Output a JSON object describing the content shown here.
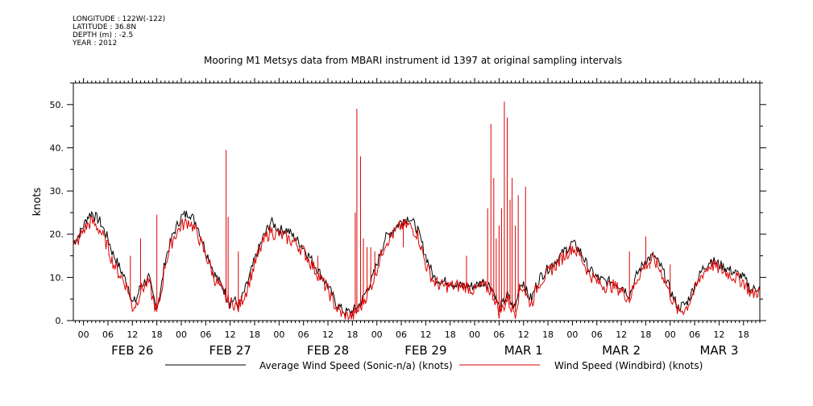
{
  "meta": {
    "longitude": "LONGITUDE : 122W(-122)",
    "latitude": "LATITUDE : 36.8N",
    "depth": "DEPTH (m) : -2.5",
    "year": "YEAR : 2012"
  },
  "chart_data": {
    "type": "line",
    "title": "Mooring M1 Metsys data from MBARI instrument id 1397 at original sampling intervals",
    "ylabel": "knots",
    "xlabel": "",
    "ylim": [
      0,
      55
    ],
    "xlim_hours": [
      -2.5,
      166
    ],
    "yticks": [
      0,
      10,
      20,
      30,
      40,
      50
    ],
    "ytick_labels": [
      "0.",
      "10.",
      "20.",
      "30.",
      "40.",
      "50."
    ],
    "xtick_labels": [
      "00",
      "06",
      "12",
      "18",
      "00",
      "06",
      "12",
      "18",
      "00",
      "06",
      "12",
      "18",
      "00",
      "06",
      "12",
      "18",
      "00",
      "06",
      "12",
      "18",
      "00",
      "06",
      "12",
      "18",
      "00",
      "06",
      "12",
      "18"
    ],
    "day_labels": [
      "FEB 26",
      "FEB 27",
      "FEB 28",
      "FEB 29",
      "MAR  1",
      "MAR  2",
      "MAR  3"
    ],
    "grid": false,
    "legend_position": "bottom",
    "series": [
      {
        "name": "Average Wind Speed (Sonic-n/a) (knots)",
        "color": "#000000",
        "x_hours": [
          -2.5,
          -1,
          0,
          1,
          2,
          4,
          6,
          7,
          8,
          10,
          11,
          12,
          13,
          14,
          15,
          16,
          17,
          18,
          19,
          20,
          22,
          24,
          26,
          28,
          30,
          31,
          32,
          34,
          35,
          36,
          37,
          38,
          40,
          42,
          44,
          46,
          47,
          48,
          50,
          52,
          54,
          56,
          58,
          60,
          62,
          64,
          66,
          68,
          69,
          70,
          71,
          72,
          73,
          74,
          76,
          78,
          80,
          82,
          84,
          86,
          88,
          90,
          92,
          94,
          96,
          98,
          100,
          101,
          102,
          103,
          104,
          105,
          106,
          107,
          108,
          109,
          110,
          111,
          112,
          114,
          116,
          118,
          120,
          122,
          124,
          126,
          128,
          130,
          132,
          134,
          136,
          138,
          140,
          142,
          144,
          146,
          148,
          150,
          152,
          153,
          154,
          156,
          158,
          160,
          162,
          164,
          166
        ],
        "values": [
          18,
          20,
          22,
          24,
          25,
          23,
          19,
          16,
          14,
          10,
          8,
          4,
          5,
          8,
          9,
          10,
          6,
          3,
          7,
          14,
          20,
          24,
          25,
          22,
          16,
          14,
          11,
          8,
          6,
          4,
          5,
          3,
          8,
          14,
          19,
          23,
          22,
          21,
          21,
          19,
          17,
          14,
          11,
          8,
          4,
          2,
          2,
          4,
          6,
          8,
          10,
          13,
          16,
          19,
          21,
          23,
          24,
          21,
          15,
          10,
          9,
          9,
          8,
          8,
          8,
          9,
          8,
          6,
          3,
          4,
          6,
          4,
          3,
          8,
          9,
          6,
          5,
          8,
          10,
          12,
          14,
          16,
          18,
          16,
          12,
          10,
          9,
          9,
          8,
          6,
          11,
          14,
          15,
          12,
          7,
          3,
          4,
          8,
          12,
          13,
          14,
          13,
          12,
          11,
          10,
          7,
          8
        ]
      },
      {
        "name": "Wind Speed (Windbird) (knots)",
        "color": "#dd0000",
        "x_hours": [
          -2.5,
          -1,
          0,
          1,
          2,
          4,
          6,
          7,
          8,
          10,
          11,
          12,
          13,
          14,
          15,
          16,
          17,
          18,
          19,
          20,
          22,
          24,
          26,
          28,
          30,
          31,
          32,
          34,
          35,
          36,
          37,
          38,
          40,
          42,
          44,
          46,
          47,
          48,
          50,
          52,
          54,
          56,
          58,
          60,
          62,
          64,
          66,
          68,
          69,
          70,
          71,
          72,
          73,
          74,
          76,
          78,
          80,
          82,
          84,
          86,
          88,
          90,
          92,
          94,
          96,
          98,
          100,
          101,
          102,
          103,
          104,
          105,
          106,
          107,
          108,
          109,
          110,
          111,
          112,
          114,
          116,
          118,
          120,
          122,
          124,
          126,
          128,
          130,
          132,
          134,
          136,
          138,
          140,
          142,
          144,
          146,
          148,
          150,
          152,
          153,
          154,
          156,
          158,
          160,
          162,
          164,
          166
        ],
        "values": [
          17,
          19,
          21,
          22,
          23,
          21,
          17,
          14,
          12,
          9,
          7,
          3,
          4,
          7,
          8,
          9,
          5,
          2,
          6,
          13,
          19,
          22,
          23,
          20,
          15,
          13,
          10,
          7,
          5,
          4,
          4,
          3,
          7,
          13,
          18,
          21,
          20,
          20,
          19,
          18,
          16,
          13,
          10,
          7,
          3,
          1,
          1,
          3,
          5,
          7,
          9,
          12,
          15,
          18,
          20,
          22,
          22,
          20,
          13,
          9,
          8,
          8,
          8,
          8,
          7,
          8,
          7,
          5,
          2,
          3,
          5,
          3,
          2,
          7,
          8,
          5,
          4,
          7,
          9,
          11,
          13,
          15,
          17,
          15,
          11,
          9,
          8,
          8,
          7,
          5,
          10,
          13,
          14,
          11,
          6,
          2,
          3,
          7,
          11,
          12,
          13,
          12,
          11,
          10,
          9,
          6,
          7
        ]
      }
    ],
    "spikes": [
      {
        "hour": 11.5,
        "value": 15
      },
      {
        "hour": 14,
        "value": 19
      },
      {
        "hour": 18,
        "value": 24.5
      },
      {
        "hour": 35,
        "value": 39.5
      },
      {
        "hour": 35.5,
        "value": 24
      },
      {
        "hour": 38,
        "value": 16
      },
      {
        "hour": 57.5,
        "value": 15
      },
      {
        "hour": 66.7,
        "value": 25
      },
      {
        "hour": 67.1,
        "value": 49
      },
      {
        "hour": 68,
        "value": 38
      },
      {
        "hour": 68.7,
        "value": 19
      },
      {
        "hour": 69.6,
        "value": 17
      },
      {
        "hour": 70.5,
        "value": 17
      },
      {
        "hour": 71.5,
        "value": 16
      },
      {
        "hour": 78.5,
        "value": 17
      },
      {
        "hour": 85,
        "value": 12
      },
      {
        "hour": 94,
        "value": 15
      },
      {
        "hour": 99.2,
        "value": 26
      },
      {
        "hour": 100,
        "value": 45.5
      },
      {
        "hour": 100.7,
        "value": 33
      },
      {
        "hour": 101.3,
        "value": 19
      },
      {
        "hour": 102,
        "value": 22
      },
      {
        "hour": 102.6,
        "value": 26
      },
      {
        "hour": 103.3,
        "value": 50.7
      },
      {
        "hour": 104,
        "value": 47
      },
      {
        "hour": 104.7,
        "value": 28
      },
      {
        "hour": 105.2,
        "value": 33
      },
      {
        "hour": 106,
        "value": 22
      },
      {
        "hour": 106.7,
        "value": 29
      },
      {
        "hour": 108.5,
        "value": 31
      },
      {
        "hour": 115,
        "value": 13
      },
      {
        "hour": 134,
        "value": 16
      },
      {
        "hour": 138,
        "value": 19.5
      },
      {
        "hour": 139,
        "value": 12
      },
      {
        "hour": 144,
        "value": 13
      }
    ]
  }
}
